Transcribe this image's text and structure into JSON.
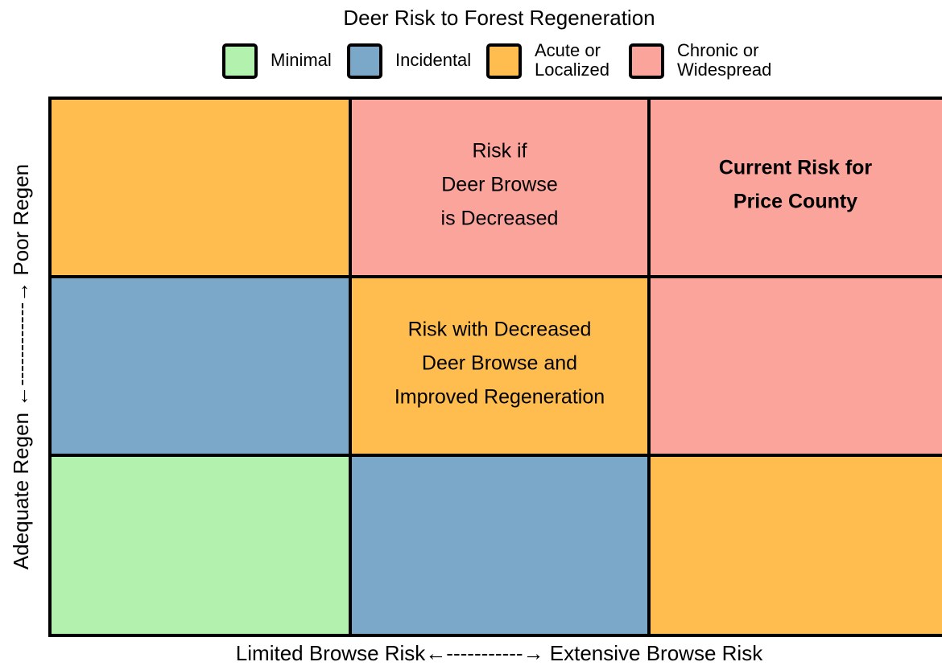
{
  "title": "Deer Risk to Forest Regeneration",
  "legend": [
    {
      "color": "#b2f2ae",
      "lines": [
        "Minimal"
      ]
    },
    {
      "color": "#7ba7c9",
      "lines": [
        "Incidental"
      ]
    },
    {
      "color": "#ffbd4f",
      "lines": [
        "Acute or",
        "Localized"
      ]
    },
    {
      "color": "#fba49b",
      "lines": [
        "Chronic or",
        "Widespread"
      ]
    }
  ],
  "rows": [
    [
      {
        "color": "#ffbd4f"
      },
      {
        "color": "#fba49b",
        "lines": [
          "Risk if",
          "Deer Browse",
          "is Decreased"
        ]
      },
      {
        "color": "#fba49b",
        "bold": true,
        "lines": [
          "Current Risk for",
          "Price County"
        ]
      }
    ],
    [
      {
        "color": "#7ba7c9"
      },
      {
        "color": "#ffbd4f",
        "lines": [
          "Risk with Decreased",
          "Deer Browse and",
          "Improved Regeneration"
        ]
      },
      {
        "color": "#fba49b"
      }
    ],
    [
      {
        "color": "#b2f2ae"
      },
      {
        "color": "#7ba7c9"
      },
      {
        "color": "#ffbd4f"
      }
    ]
  ],
  "y_axis_label": "Adequate Regen ←------------→ Poor Regen",
  "x_axis_label": "Limited Browse Risk←-----------→ Extensive Browse Risk"
}
